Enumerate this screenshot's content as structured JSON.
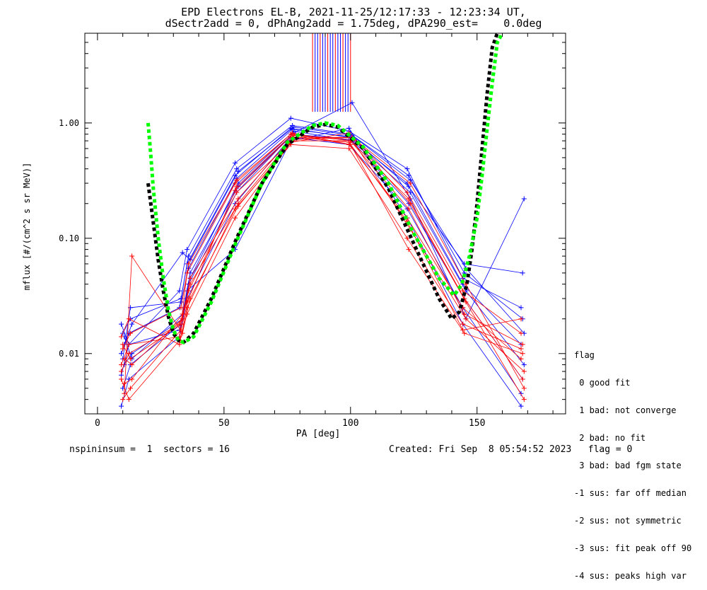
{
  "title_line1": "EPD Electrons EL-B, 2021-11-25/12:17:33 - 12:23:34 UT,",
  "title_line2": "dSectr2add = 0, dPhAng2add = 1.75deg, dPA290_est=    0.0deg",
  "footer": {
    "left": "nspininsum =  1  sectors = 16",
    "right": "Created: Fri Sep  8 05:54:52 2023   flag = 0"
  },
  "legend": {
    "title": "flag",
    "items": [
      " 0 good fit",
      " 1 bad: not converge",
      " 2 bad: no fit",
      " 3 bad: bad fgm state",
      "-1 sus: far off median",
      "-2 sus: not symmetric",
      "-3 sus: fit peak off 90",
      "-4 sus: peaks high var"
    ]
  },
  "colors": {
    "red": "#ff0000",
    "blue": "#0000ff",
    "green": "#00ff00",
    "black": "#000000"
  },
  "chart_data": {
    "type": "line",
    "xlabel": "PA [deg]",
    "ylabel": "mflux [#/(cm^2 s sr MeV)]",
    "xlim": [
      -5,
      185
    ],
    "ylim": [
      0.003,
      6.0
    ],
    "yscale": "log",
    "xticks": [
      0,
      50,
      100,
      150
    ],
    "xtick_labels": [
      "0",
      "50",
      "100",
      "150"
    ],
    "yticks": [
      0.01,
      0.1,
      1.0
    ],
    "ytick_labels": [
      "0.01",
      "0.10",
      "1.00"
    ],
    "pa_sectors": [
      10,
      13,
      33,
      36,
      55,
      77,
      100,
      123,
      145,
      168
    ],
    "spins_red": [
      [
        0.008,
        0.012,
        0.014,
        0.05,
        0.3,
        0.8,
        0.65,
        0.15,
        0.025,
        0.009
      ],
      [
        0.012,
        0.009,
        0.018,
        0.035,
        0.25,
        0.7,
        0.7,
        0.22,
        0.03,
        0.006
      ],
      [
        0.0055,
        0.006,
        0.022,
        0.04,
        0.2,
        0.75,
        0.75,
        0.3,
        0.04,
        0.005
      ],
      [
        0.014,
        0.02,
        0.012,
        0.025,
        0.18,
        0.65,
        0.6,
        0.1,
        0.018,
        0.011
      ],
      [
        0.004,
        0.005,
        0.016,
        0.03,
        0.28,
        0.8,
        0.7,
        0.18,
        0.022,
        0.012
      ],
      [
        0.009,
        0.008,
        0.02,
        0.045,
        0.22,
        0.78,
        0.72,
        0.12,
        0.02,
        0.007
      ],
      [
        0.006,
        0.004,
        0.013,
        0.022,
        0.15,
        0.68,
        0.82,
        0.25,
        0.035,
        0.015
      ],
      [
        0.011,
        0.015,
        0.025,
        0.06,
        0.32,
        0.82,
        0.65,
        0.08,
        0.015,
        0.01
      ],
      [
        0.0045,
        0.07,
        0.015,
        0.03,
        0.19,
        0.72,
        0.75,
        0.2,
        0.028,
        0.004
      ],
      [
        0.007,
        0.01,
        0.018,
        0.028,
        0.26,
        0.76,
        0.68,
        0.14,
        0.016,
        0.02
      ]
    ],
    "spins_blue": [
      [
        0.01,
        0.015,
        0.025,
        0.06,
        0.35,
        0.9,
        0.75,
        0.3,
        0.04,
        0.012
      ],
      [
        0.015,
        0.02,
        0.03,
        0.07,
        0.4,
        0.95,
        0.8,
        0.35,
        0.05,
        0.02
      ],
      [
        0.008,
        0.01,
        0.02,
        0.045,
        0.3,
        0.85,
        0.7,
        0.25,
        0.035,
        0.008
      ],
      [
        0.018,
        0.012,
        0.035,
        0.08,
        0.45,
        1.1,
        0.85,
        0.4,
        0.045,
        0.025
      ],
      [
        0.005,
        0.008,
        0.018,
        0.04,
        0.25,
        0.8,
        0.72,
        0.2,
        0.03,
        0.006
      ],
      [
        0.012,
        0.018,
        0.075,
        0.065,
        0.38,
        0.92,
        0.78,
        0.32,
        0.055,
        0.015
      ],
      [
        0.0035,
        0.006,
        0.014,
        0.03,
        0.2,
        0.75,
        0.65,
        0.18,
        0.025,
        0.0045
      ],
      [
        0.009,
        0.025,
        0.028,
        0.055,
        0.33,
        0.88,
        0.76,
        0.28,
        0.06,
        0.05
      ],
      [
        0.014,
        0.009,
        0.022,
        0.05,
        0.28,
        0.82,
        1.5,
        0.22,
        0.02,
        0.22
      ],
      [
        0.0065,
        0.012,
        0.016,
        0.035,
        0.08,
        0.7,
        0.9,
        0.15,
        0.018,
        0.0035
      ]
    ],
    "fit_black": {
      "x": [
        20,
        22,
        24,
        26,
        28,
        30,
        32,
        34,
        38,
        45,
        55,
        65,
        75,
        85,
        90,
        95,
        105,
        115,
        125,
        135,
        140,
        143,
        146,
        148,
        150,
        152,
        154,
        156,
        158
      ],
      "y": [
        0.3,
        0.14,
        0.065,
        0.035,
        0.021,
        0.015,
        0.013,
        0.0125,
        0.015,
        0.03,
        0.1,
        0.3,
        0.65,
        0.92,
        0.97,
        0.92,
        0.6,
        0.27,
        0.09,
        0.03,
        0.02,
        0.023,
        0.04,
        0.08,
        0.2,
        0.6,
        1.8,
        4.5,
        6.0
      ]
    },
    "fit_green": {
      "x": [
        20,
        21,
        22,
        24,
        26,
        28,
        30,
        32,
        34,
        38,
        45,
        55,
        65,
        75,
        85,
        90,
        95,
        105,
        115,
        125,
        135,
        141,
        144,
        147,
        150,
        152,
        154,
        156,
        158,
        160
      ],
      "y": [
        1.0,
        0.55,
        0.28,
        0.1,
        0.045,
        0.024,
        0.016,
        0.013,
        0.0125,
        0.014,
        0.028,
        0.095,
        0.3,
        0.68,
        0.95,
        1.0,
        0.95,
        0.62,
        0.3,
        0.11,
        0.045,
        0.032,
        0.04,
        0.07,
        0.15,
        0.35,
        0.9,
        2.2,
        5.0,
        6.0
      ]
    },
    "vertical_spikes": {
      "x": [
        85,
        86,
        87,
        88,
        89,
        90,
        91,
        92,
        93,
        94,
        95,
        96,
        97,
        98,
        99,
        100
      ],
      "y_bottom": 1.25
    }
  }
}
